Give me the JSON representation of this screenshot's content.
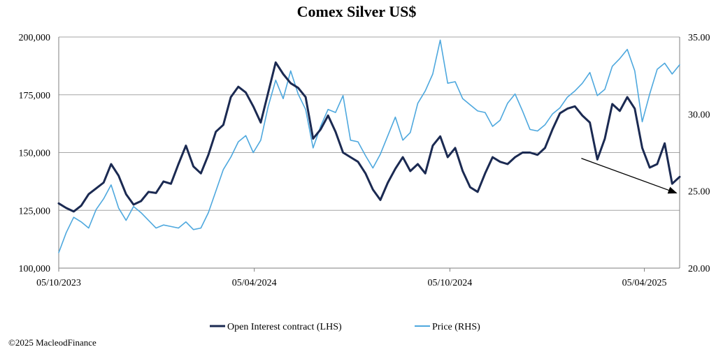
{
  "chart_data": {
    "type": "line",
    "title": "Comex Silver US$",
    "footer": "©2025 MacleodFinance",
    "x_start": "2023-10-05",
    "x_end": "2025-05-08",
    "x_tick_labels": [
      "05/10/2023",
      "05/04/2024",
      "05/10/2024",
      "05/04/2025"
    ],
    "x_tick_dates": [
      "2023-10-05",
      "2024-04-05",
      "2024-10-05",
      "2025-04-05"
    ],
    "y_left": {
      "min": 100000,
      "max": 200000,
      "ticks": [
        100000,
        125000,
        150000,
        175000,
        200000
      ],
      "tick_labels": [
        "100,000",
        "125,000",
        "150,000",
        "175,000",
        "200,000"
      ]
    },
    "y_right": {
      "min": 20,
      "max": 35,
      "ticks": [
        20,
        25,
        30,
        35
      ],
      "tick_labels": [
        "20.00",
        "25.00",
        "30.00",
        "35.00"
      ]
    },
    "grid": "horizontal",
    "legend_position": "bottom",
    "colors": {
      "open_interest": "#1b2a52",
      "price": "#4ea8de",
      "grid": "#a6a6a6",
      "axis": "#7f7f7f"
    },
    "annotation": {
      "type": "arrow",
      "from": {
        "x": "2025-02-05",
        "y": 147500
      },
      "to": {
        "x": "2025-05-05",
        "y": 132500
      }
    },
    "series": [
      {
        "name": "Open Interest contract (LHS)",
        "axis": "left",
        "x": [
          "2023-10-05",
          "2023-10-12",
          "2023-10-19",
          "2023-10-26",
          "2023-11-02",
          "2023-11-09",
          "2023-11-16",
          "2023-11-23",
          "2023-11-30",
          "2023-12-07",
          "2023-12-14",
          "2023-12-21",
          "2023-12-28",
          "2024-01-04",
          "2024-01-11",
          "2024-01-18",
          "2024-01-25",
          "2024-02-01",
          "2024-02-08",
          "2024-02-15",
          "2024-02-22",
          "2024-02-29",
          "2024-03-07",
          "2024-03-14",
          "2024-03-21",
          "2024-03-28",
          "2024-04-04",
          "2024-04-11",
          "2024-04-18",
          "2024-04-25",
          "2024-05-02",
          "2024-05-09",
          "2024-05-16",
          "2024-05-23",
          "2024-05-30",
          "2024-06-06",
          "2024-06-13",
          "2024-06-20",
          "2024-06-27",
          "2024-07-04",
          "2024-07-11",
          "2024-07-18",
          "2024-07-25",
          "2024-08-01",
          "2024-08-08",
          "2024-08-15",
          "2024-08-22",
          "2024-08-29",
          "2024-09-05",
          "2024-09-12",
          "2024-09-19",
          "2024-09-26",
          "2024-10-03",
          "2024-10-10",
          "2024-10-17",
          "2024-10-24",
          "2024-10-31",
          "2024-11-07",
          "2024-11-14",
          "2024-11-21",
          "2024-11-28",
          "2024-12-05",
          "2024-12-12",
          "2024-12-19",
          "2024-12-26",
          "2025-01-02",
          "2025-01-09",
          "2025-01-16",
          "2025-01-23",
          "2025-01-30",
          "2025-02-06",
          "2025-02-13",
          "2025-02-20",
          "2025-02-27",
          "2025-03-06",
          "2025-03-13",
          "2025-03-20",
          "2025-03-27",
          "2025-04-03",
          "2025-04-10",
          "2025-04-17",
          "2025-04-24",
          "2025-05-01",
          "2025-05-08"
        ],
        "values": [
          128000,
          126000,
          124500,
          127000,
          132000,
          134500,
          137000,
          145000,
          140000,
          132000,
          127500,
          129000,
          133000,
          132500,
          137500,
          136500,
          145000,
          153000,
          144000,
          141000,
          149000,
          159000,
          162000,
          174000,
          178500,
          176000,
          170000,
          163000,
          176000,
          189000,
          184000,
          180000,
          178000,
          174000,
          156000,
          160000,
          166000,
          159000,
          150000,
          148000,
          146000,
          141000,
          134000,
          129500,
          137000,
          143000,
          148000,
          142000,
          145000,
          141000,
          153000,
          157000,
          148000,
          152000,
          142000,
          135000,
          133000,
          141000,
          148000,
          146000,
          145000,
          148000,
          150000,
          150000,
          149000,
          152000,
          160000,
          167000,
          169000,
          170000,
          166000,
          163000,
          147000,
          156000,
          171000,
          168000,
          174000,
          169000,
          152000,
          143500,
          145000,
          154000,
          136500,
          139500
        ]
      },
      {
        "name": "Price (RHS)",
        "axis": "right",
        "x": [
          "2023-10-05",
          "2023-10-12",
          "2023-10-19",
          "2023-10-26",
          "2023-11-02",
          "2023-11-09",
          "2023-11-16",
          "2023-11-23",
          "2023-11-30",
          "2023-12-07",
          "2023-12-14",
          "2023-12-21",
          "2023-12-28",
          "2024-01-04",
          "2024-01-11",
          "2024-01-18",
          "2024-01-25",
          "2024-02-01",
          "2024-02-08",
          "2024-02-15",
          "2024-02-22",
          "2024-02-29",
          "2024-03-07",
          "2024-03-14",
          "2024-03-21",
          "2024-03-28",
          "2024-04-04",
          "2024-04-11",
          "2024-04-18",
          "2024-04-25",
          "2024-05-02",
          "2024-05-09",
          "2024-05-16",
          "2024-05-23",
          "2024-05-30",
          "2024-06-06",
          "2024-06-13",
          "2024-06-20",
          "2024-06-27",
          "2024-07-04",
          "2024-07-11",
          "2024-07-18",
          "2024-07-25",
          "2024-08-01",
          "2024-08-08",
          "2024-08-15",
          "2024-08-22",
          "2024-08-29",
          "2024-09-05",
          "2024-09-12",
          "2024-09-19",
          "2024-09-26",
          "2024-10-03",
          "2024-10-10",
          "2024-10-17",
          "2024-10-24",
          "2024-10-31",
          "2024-11-07",
          "2024-11-14",
          "2024-11-21",
          "2024-11-28",
          "2024-12-05",
          "2024-12-12",
          "2024-12-19",
          "2024-12-26",
          "2025-01-02",
          "2025-01-09",
          "2025-01-16",
          "2025-01-23",
          "2025-01-30",
          "2025-02-06",
          "2025-02-13",
          "2025-02-20",
          "2025-02-27",
          "2025-03-06",
          "2025-03-13",
          "2025-03-20",
          "2025-03-27",
          "2025-04-03",
          "2025-04-10",
          "2025-04-17",
          "2025-04-24",
          "2025-05-01",
          "2025-05-08"
        ],
        "values": [
          21.0,
          22.3,
          23.3,
          23.0,
          22.6,
          23.8,
          24.5,
          25.4,
          23.9,
          23.1,
          24.0,
          23.6,
          23.1,
          22.6,
          22.8,
          22.7,
          22.6,
          23.0,
          22.5,
          22.6,
          23.6,
          25.0,
          26.4,
          27.2,
          28.2,
          28.6,
          27.5,
          28.3,
          30.5,
          32.2,
          31.0,
          32.8,
          31.3,
          30.3,
          27.8,
          29.2,
          30.3,
          30.1,
          31.2,
          28.3,
          28.2,
          27.3,
          26.5,
          27.4,
          28.6,
          29.8,
          28.3,
          28.8,
          30.7,
          31.5,
          32.6,
          34.8,
          32.0,
          32.1,
          31.0,
          30.6,
          30.2,
          30.1,
          29.2,
          29.6,
          30.7,
          31.3,
          30.2,
          29.0,
          28.9,
          29.3,
          30.0,
          30.4,
          31.1,
          31.5,
          32.0,
          32.7,
          31.2,
          31.6,
          33.1,
          33.6,
          34.2,
          32.8,
          29.5,
          31.3,
          32.9,
          33.3,
          32.6,
          33.2
        ]
      }
    ]
  }
}
